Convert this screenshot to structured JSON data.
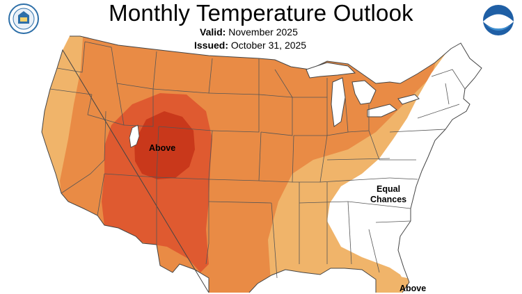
{
  "header": {
    "title": "Monthly Temperature Outlook",
    "valid_label": "Valid:",
    "valid_value": "November 2025",
    "issued_label": "Issued:",
    "issued_value": "October 31, 2025"
  },
  "logos": {
    "left": "department-of-commerce-seal",
    "right_text": "NOAA"
  },
  "map_labels": {
    "above_west": "Above",
    "equal_line1": "Equal",
    "equal_line2": "Chances",
    "above_florida": "Above"
  },
  "colors": {
    "above_33_40": "#f0b46a",
    "above_40_50": "#e98b45",
    "above_50_60": "#df5a30",
    "above_60_70": "#c9381b",
    "equal_chances": "#ffffff",
    "borders": "#444444",
    "water": "#ffffff"
  }
}
